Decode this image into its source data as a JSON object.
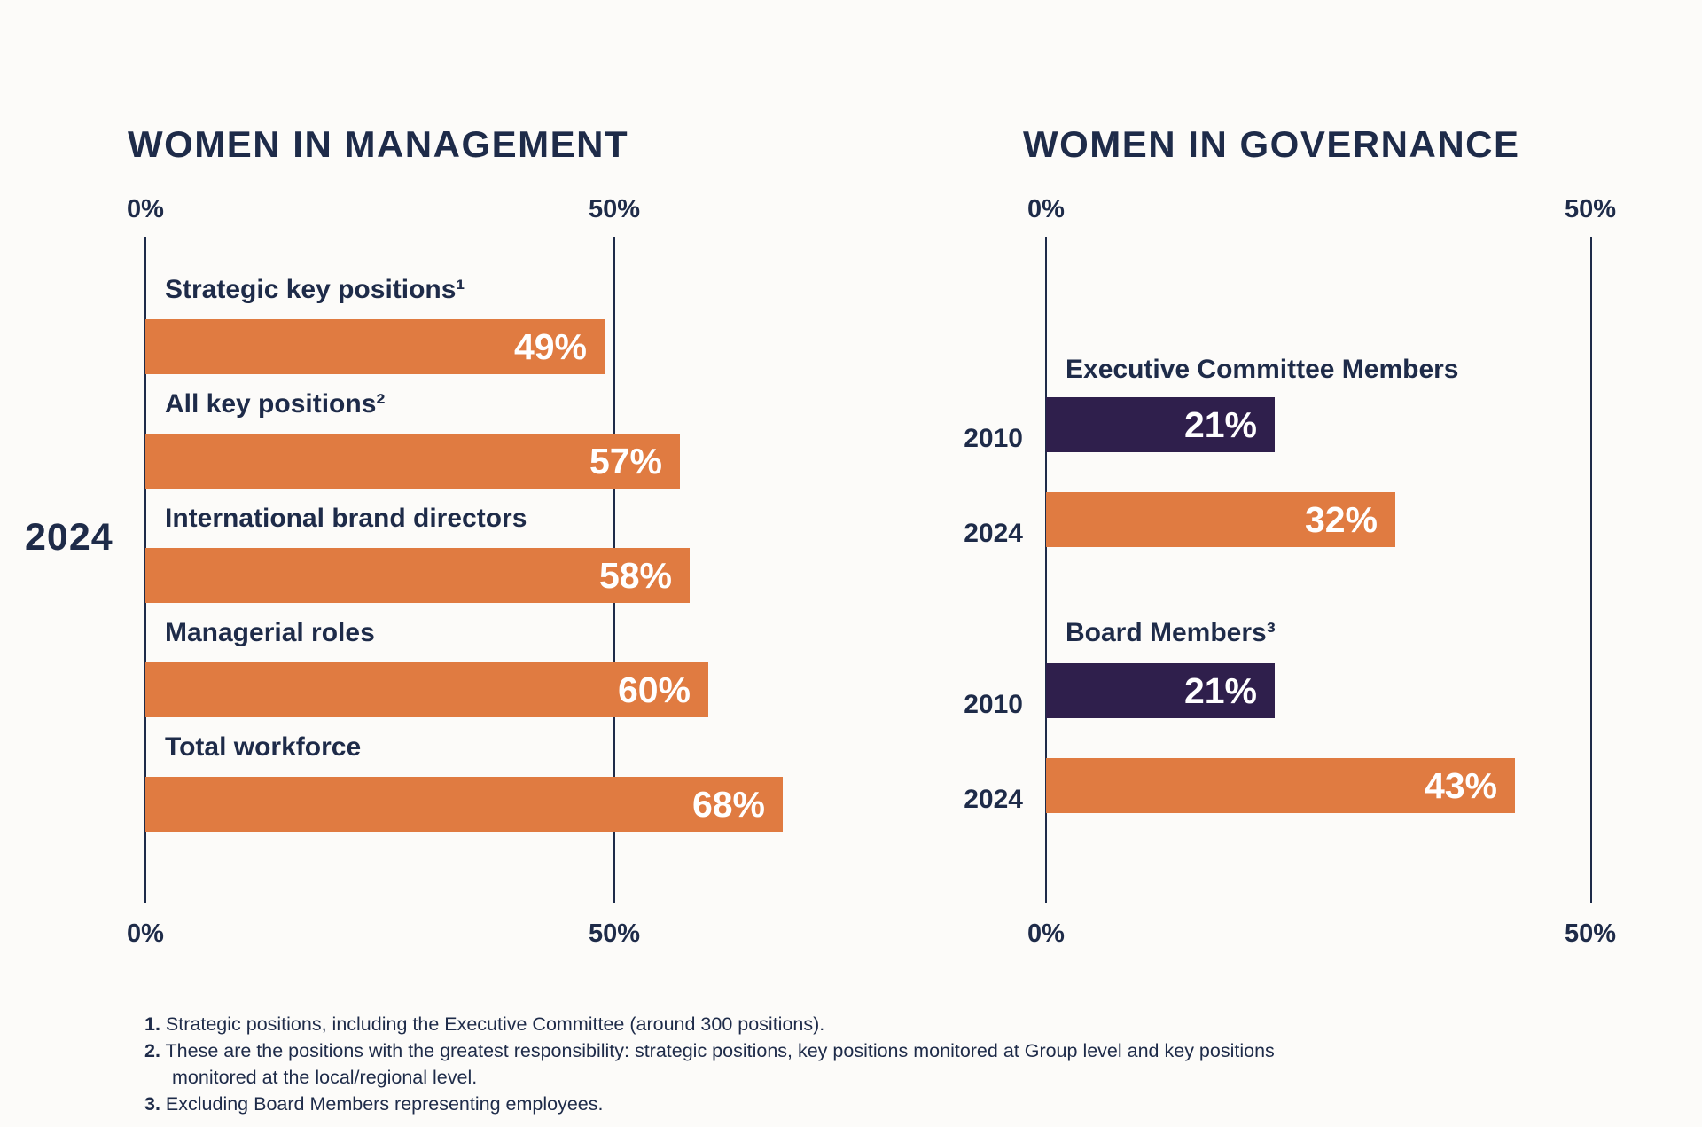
{
  "colors": {
    "background": "#FCFBF9",
    "navy_text": "#1E2B49",
    "orange_bar": "#E07B41",
    "purple_bar": "#2F1F4C",
    "bar_value_text": "#FFFFFF"
  },
  "chart_data": [
    {
      "type": "bar",
      "orientation": "horizontal",
      "title": "WOMEN IN MANAGEMENT",
      "year_label": "2024",
      "axis": {
        "min": 0,
        "gridline_at": 50,
        "min_label": "0%",
        "max_label": "50%"
      },
      "grid": "two vertical lines at 0% and 50%, labels shown at top and bottom",
      "categories": [
        "Strategic key positions¹",
        "All key positions²",
        "International brand directors",
        "Managerial roles",
        "Total workforce"
      ],
      "values": [
        49,
        57,
        58,
        60,
        68
      ],
      "value_labels": [
        "49%",
        "57%",
        "58%",
        "60%",
        "68%"
      ],
      "bar_color": "#E07B41"
    },
    {
      "type": "bar",
      "orientation": "horizontal",
      "title": "WOMEN IN GOVERNANCE",
      "axis": {
        "min": 0,
        "gridline_at": 50,
        "min_label": "0%",
        "max_label": "50%"
      },
      "grid": "two vertical lines at 0% and 50%, labels shown at top and bottom",
      "groups": [
        {
          "label": "Executive Committee Members",
          "rows": [
            {
              "year": "2010",
              "value": 21,
              "value_label": "21%",
              "color": "#2F1F4C"
            },
            {
              "year": "2024",
              "value": 32,
              "value_label": "32%",
              "color": "#E07B41"
            }
          ]
        },
        {
          "label": "Board Members³",
          "rows": [
            {
              "year": "2010",
              "value": 21,
              "value_label": "21%",
              "color": "#2F1F4C"
            },
            {
              "year": "2024",
              "value": 43,
              "value_label": "43%",
              "color": "#E07B41"
            }
          ]
        }
      ]
    }
  ],
  "footnotes": [
    {
      "marker": "1.",
      "text": "Strategic positions, including the Executive Committee (around 300 positions)."
    },
    {
      "marker": "2.",
      "text": "These are the positions with the greatest responsibility: strategic positions, key positions monitored at Group level and key positions",
      "text2": "monitored at the local/regional level."
    },
    {
      "marker": "3.",
      "text": "Excluding Board Members representing employees."
    }
  ]
}
